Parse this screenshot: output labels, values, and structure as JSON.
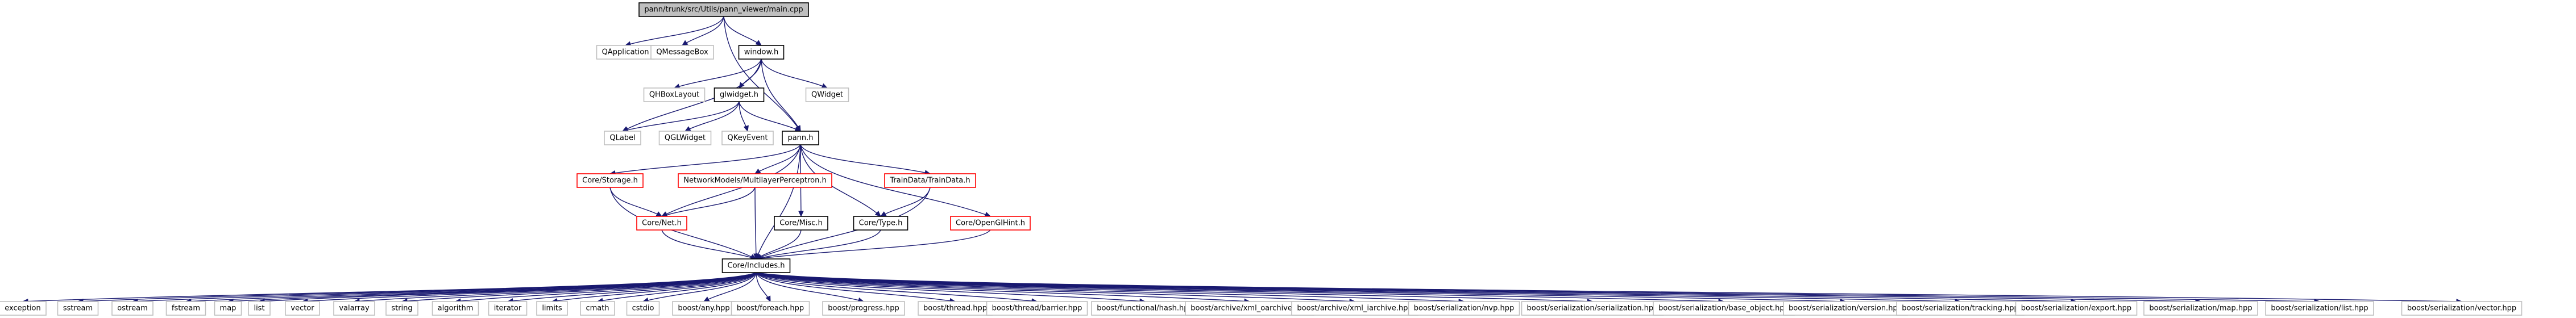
{
  "colors": {
    "edge": "#191970",
    "root_fill": "#bfbfbf",
    "root_border": "#000000",
    "local_border": "#000000",
    "missing_border": "#bfbfbf",
    "linked_border": "#ff0000"
  },
  "nodes": {
    "main": "pann/trunk/src/Utils/pann_viewer/main.cpp",
    "QApplication": "QApplication",
    "QMessageBox": "QMessageBox",
    "window": "window.h",
    "QHBoxLayout": "QHBoxLayout",
    "glwidget": "glwidget.h",
    "QWidget": "QWidget",
    "QLabel": "QLabel",
    "QGLWidget": "QGLWidget",
    "QKeyEvent": "QKeyEvent",
    "pann": "pann.h",
    "CoreStorage": "Core/Storage.h",
    "NetworkMLP": "NetworkModels/MultilayerPerceptron.h",
    "TrainData": "TrainData/TrainData.h",
    "CoreNet": "Core/Net.h",
    "CoreMisc": "Core/Misc.h",
    "CoreType": "Core/Type.h",
    "CoreOpenGL": "Core/OpenGlHint.h",
    "CoreIncludes": "Core/Includes.h",
    "exception": "exception",
    "sstream": "sstream",
    "ostream": "ostream",
    "fstream": "fstream",
    "map": "map",
    "list": "list",
    "vector": "vector",
    "valarray": "valarray",
    "string": "string",
    "algorithm": "algorithm",
    "iterator": "iterator",
    "limits": "limits",
    "cmath": "cmath",
    "cstdio": "cstdio",
    "any": "boost/any.hpp",
    "foreach": "boost/foreach.hpp",
    "progress": "boost/progress.hpp",
    "thread": "boost/thread.hpp",
    "barrier": "boost/thread/barrier.hpp",
    "hash": "boost/functional/hash.hpp",
    "xml_oarchive": "boost/archive/xml_oarchive.hpp",
    "xml_iarchive": "boost/archive/xml_iarchive.hpp",
    "nvp": "boost/serialization/nvp.hpp",
    "serialization": "boost/serialization/serialization.hpp",
    "base_object": "boost/serialization/base_object.hpp",
    "version": "boost/serialization/version.hpp",
    "tracking": "boost/serialization/tracking.hpp",
    "export": "boost/serialization/export.hpp",
    "smap": "boost/serialization/map.hpp",
    "slist": "boost/serialization/list.hpp",
    "svector": "boost/serialization/vector.hpp"
  }
}
